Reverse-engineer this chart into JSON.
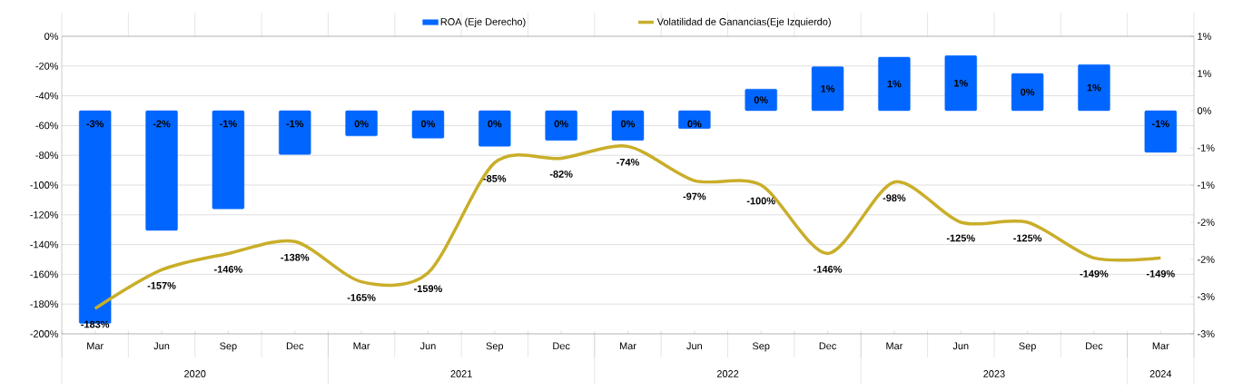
{
  "chart_data": {
    "type": "bar",
    "categories": [
      "Mar",
      "Jun",
      "Sep",
      "Dec",
      "Mar",
      "Jun",
      "Sep",
      "Dec",
      "Mar",
      "Jun",
      "Sep",
      "Dec",
      "Mar",
      "Jun",
      "Sep",
      "Dec",
      "Mar"
    ],
    "series": [
      {
        "name": "ROA (Eje Derecho)",
        "axis": "y2",
        "color": "#0066ff",
        "values": [
          -2.86,
          -1.61,
          -1.32,
          -0.59,
          -0.34,
          -0.37,
          -0.48,
          -0.4,
          -0.4,
          -0.24,
          0.29,
          0.59,
          0.72,
          0.74,
          0.5,
          0.62,
          -0.56
        ],
        "value_labels": [
          "-3%",
          "-2%",
          "-1%",
          "-1%",
          "0%",
          "0%",
          "0%",
          "0%",
          "0%",
          "0%",
          "0%",
          "1%",
          "1%",
          "1%",
          "0%",
          "1%",
          "-1%"
        ]
      },
      {
        "name": "Volatilidad de Ganancias(Eje Izquierdo)",
        "type": "line",
        "color": "#c9ae2a",
        "line_style": "solid",
        "marker": "none",
        "values": [
          -183,
          -157,
          -146,
          -138,
          -165,
          -159,
          -85,
          -82,
          -74,
          -97,
          -100,
          -146,
          -98,
          -125,
          -125,
          -149,
          -149
        ],
        "value_labels": [
          "-183%",
          "-157%",
          "-146%",
          "-138%",
          "-165%",
          "-159%",
          "-85%",
          "-82%",
          "-74%",
          "-97%",
          "-100%",
          "-146%",
          "-98%",
          "-125%",
          "-125%",
          "-149%",
          "-149%"
        ]
      }
    ],
    "ylim": [
      -200,
      0
    ],
    "yticks": [
      {
        "value": -200,
        "label": "-200%"
      },
      {
        "value": -180,
        "label": "-180%"
      },
      {
        "value": -160,
        "label": "-160%"
      },
      {
        "value": -140,
        "label": "-140%"
      },
      {
        "value": -120,
        "label": "-120%"
      },
      {
        "value": -100,
        "label": "-100%"
      },
      {
        "value": -80,
        "label": "-80%"
      },
      {
        "value": -60,
        "label": "-60%"
      },
      {
        "value": -40,
        "label": "-40%"
      },
      {
        "value": -20,
        "label": "-20%"
      },
      {
        "value": 0,
        "label": "0%"
      }
    ],
    "y2lim": [
      -3,
      1
    ],
    "y2ticks": [
      {
        "value": -3,
        "label": "-3%"
      },
      {
        "value": -2.5,
        "label": "-3%"
      },
      {
        "value": -2,
        "label": "-2%"
      },
      {
        "value": -1.5,
        "label": "-2%"
      },
      {
        "value": -1,
        "label": "-1%"
      },
      {
        "value": -0.5,
        "label": "-1%"
      },
      {
        "value": 0,
        "label": "0%"
      },
      {
        "value": 0.5,
        "label": "1%"
      },
      {
        "value": 1,
        "label": "1%"
      }
    ],
    "annotations": [
      "2020",
      "2021",
      "2022",
      "2023",
      "2024"
    ],
    "grid": "y",
    "legend": "top"
  }
}
